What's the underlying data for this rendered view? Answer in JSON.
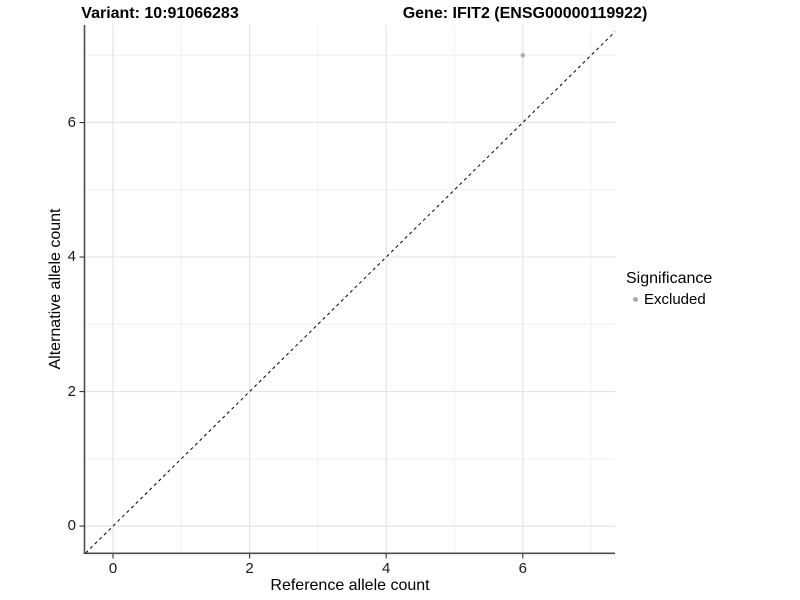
{
  "figure": {
    "title_left": "Variant: 10:91066283",
    "title_right": "Gene: IFIT2 (ENSG00000119922)"
  },
  "chart_data": {
    "type": "scatter",
    "title_left": "Variant: 10:91066283",
    "title_right": "Gene: IFIT2 (ENSG00000119922)",
    "xlabel": "Reference allele count",
    "ylabel": "Alternative allele count",
    "xlim": [
      -0.41,
      7.35
    ],
    "ylim": [
      -0.4,
      7.45
    ],
    "x_ticks": [
      0,
      2,
      4,
      6
    ],
    "y_ticks": [
      0,
      2,
      4,
      6
    ],
    "x_minor": [
      1,
      3,
      5,
      7
    ],
    "y_minor": [
      1,
      3,
      5,
      7
    ],
    "grid": true,
    "series": [
      {
        "name": "Excluded",
        "points": [
          {
            "x": 6,
            "y": 7
          }
        ],
        "color": "#ABABAB"
      }
    ],
    "reference_line": {
      "type": "identity",
      "style": "dashed",
      "color": "#000000"
    },
    "legend": {
      "title": "Significance",
      "position": "right",
      "entries": [
        {
          "label": "Excluded",
          "color": "#ABABAB"
        }
      ]
    },
    "style": {
      "grid_major": "#E4E4E4",
      "grid_minor": "#F0F0F0",
      "axis_line": "#4D4D4D",
      "tick_mark": "#333333",
      "point": "#ABABAB",
      "background": "#FFFFFF"
    }
  }
}
